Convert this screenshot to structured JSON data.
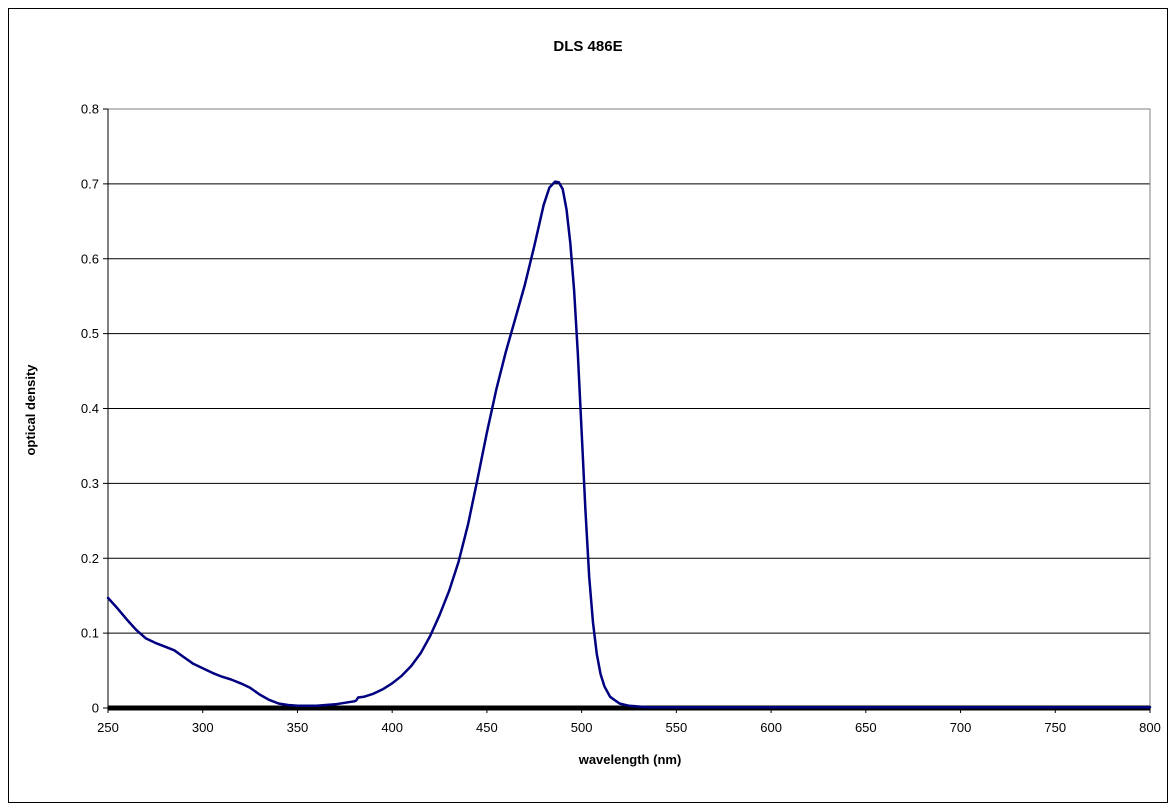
{
  "chart_data": {
    "type": "line",
    "title": "DLS 486E",
    "xlabel": "wavelength (nm)",
    "ylabel": "optical density",
    "xlim": [
      250,
      800
    ],
    "ylim": [
      0,
      0.8
    ],
    "x_ticks": [
      250,
      300,
      350,
      400,
      450,
      500,
      550,
      600,
      650,
      700,
      750,
      800
    ],
    "y_ticks": [
      0,
      0.1,
      0.2,
      0.3,
      0.4,
      0.5,
      0.6,
      0.7,
      0.8
    ],
    "y_tick_labels": [
      "0",
      "0.1",
      "0.2",
      "0.3",
      "0.4",
      "0.5",
      "0.6",
      "0.7",
      "0.8"
    ],
    "grid": "horizontal",
    "legend": "none",
    "line_color": "#000080",
    "series": [
      {
        "x": [
          250,
          255,
          260,
          265,
          270,
          275,
          280,
          285,
          290,
          295,
          300,
          305,
          310,
          315,
          320,
          325,
          330,
          335,
          340,
          345,
          350,
          355,
          360,
          365,
          370,
          375,
          380,
          381,
          382,
          385,
          390,
          395,
          400,
          405,
          410,
          415,
          420,
          425,
          430,
          435,
          440,
          445,
          450,
          455,
          460,
          465,
          470,
          475,
          480,
          483,
          486,
          488,
          490,
          492,
          494,
          496,
          498,
          500,
          502,
          504,
          506,
          508,
          510,
          512,
          515,
          520,
          525,
          530,
          535,
          540,
          550,
          600,
          650,
          700,
          750,
          800
        ],
        "y": [
          0.147,
          0.133,
          0.118,
          0.104,
          0.093,
          0.087,
          0.082,
          0.077,
          0.068,
          0.059,
          0.053,
          0.047,
          0.042,
          0.038,
          0.033,
          0.027,
          0.018,
          0.011,
          0.006,
          0.004,
          0.003,
          0.003,
          0.003,
          0.004,
          0.005,
          0.007,
          0.009,
          0.01,
          0.014,
          0.015,
          0.019,
          0.025,
          0.033,
          0.043,
          0.056,
          0.073,
          0.096,
          0.124,
          0.156,
          0.195,
          0.245,
          0.305,
          0.368,
          0.426,
          0.476,
          0.52,
          0.565,
          0.617,
          0.672,
          0.695,
          0.703,
          0.702,
          0.693,
          0.666,
          0.621,
          0.558,
          0.474,
          0.37,
          0.265,
          0.175,
          0.114,
          0.072,
          0.045,
          0.029,
          0.015,
          0.006,
          0.003,
          0.002,
          0.001,
          0.001,
          0.001,
          0.001,
          0.001,
          0.001,
          0.001,
          0.001
        ]
      }
    ]
  }
}
